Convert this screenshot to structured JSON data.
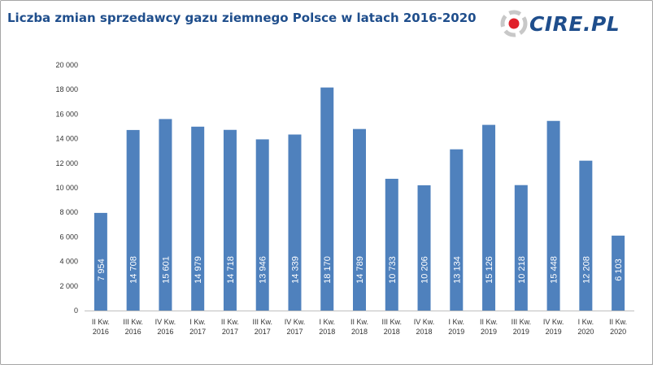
{
  "header": {
    "title": "Liczba zmian sprzedawcy gazu ziemnego  Polsce w latach 2016-2020",
    "logo_text": "CIRE.PL"
  },
  "colors": {
    "bar": "#4f81bd",
    "title": "#1f4e8c",
    "logo_red": "#e0202a"
  },
  "chart_data": {
    "type": "bar",
    "title": "Liczba zmian sprzedawcy gazu ziemnego  Polsce w latach 2016-2020",
    "xlabel": "",
    "ylabel": "",
    "ylim": [
      0,
      20000
    ],
    "yticks": [
      "0",
      "2 000",
      "4 000",
      "6 000",
      "8 000",
      "10 000",
      "12 000",
      "14 000",
      "16 000",
      "18 000",
      "20 000"
    ],
    "ytick_values": [
      0,
      2000,
      4000,
      6000,
      8000,
      10000,
      12000,
      14000,
      16000,
      18000,
      20000
    ],
    "grid": false,
    "categories": [
      [
        "II Kw.",
        "2016"
      ],
      [
        "III Kw.",
        "2016"
      ],
      [
        "IV Kw.",
        "2016"
      ],
      [
        "I Kw.",
        "2017"
      ],
      [
        "II Kw.",
        "2017"
      ],
      [
        "III Kw.",
        "2017"
      ],
      [
        "IV Kw.",
        "2017"
      ],
      [
        "I Kw.",
        "2018"
      ],
      [
        "II Kw.",
        "2018"
      ],
      [
        "III Kw.",
        "2018"
      ],
      [
        "IV Kw.",
        "2018"
      ],
      [
        "I Kw.",
        "2019"
      ],
      [
        "II Kw.",
        "2019"
      ],
      [
        "III Kw.",
        "2019"
      ],
      [
        "IV Kw.",
        "2019"
      ],
      [
        "I Kw.",
        "2020"
      ],
      [
        "II Kw.",
        "2020"
      ]
    ],
    "values": [
      7954,
      14708,
      15601,
      14979,
      14718,
      13946,
      14339,
      18170,
      14789,
      10733,
      10206,
      13134,
      15126,
      10218,
      15448,
      12208,
      6103
    ],
    "data_labels": [
      "7 954",
      "14 708",
      "15 601",
      "14 979",
      "14 718",
      "13 946",
      "14 339",
      "18 170",
      "14 789",
      "10 733",
      "10 206",
      "13 134",
      "15 126",
      "10 218",
      "15 448",
      "12 208",
      "6 103"
    ]
  }
}
